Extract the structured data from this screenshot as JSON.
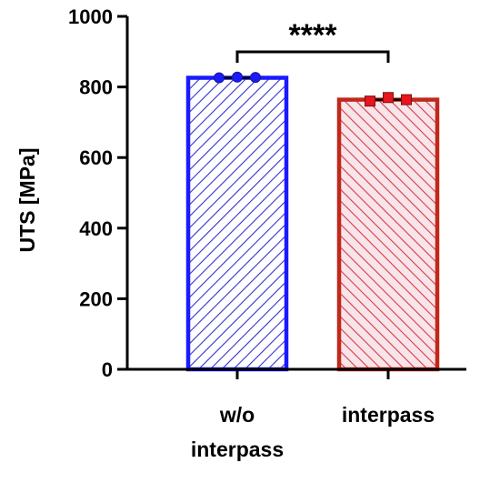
{
  "chart_data": {
    "type": "bar",
    "categories": [
      [
        "w/o",
        "interpass"
      ],
      [
        "interpass"
      ]
    ],
    "values": [
      826,
      764
    ],
    "points": [
      [
        826,
        828,
        827
      ],
      [
        760,
        770,
        764
      ]
    ],
    "ylabel": "UTS [MPa]",
    "xlabel": "",
    "ylim": [
      0,
      1000
    ],
    "yticks": [
      0,
      200,
      400,
      600,
      800,
      1000
    ],
    "significance": "****",
    "colors": {
      "bar1_stroke": "#1a1aff",
      "bar1_hatch": "#3333cc",
      "bar1_point": "#1a1aff",
      "bar2_stroke": "#c0281c",
      "bar2_hatch": "#d14040",
      "bar2_fill": "#f8e4ea",
      "bar2_point": "#e8141e"
    }
  }
}
